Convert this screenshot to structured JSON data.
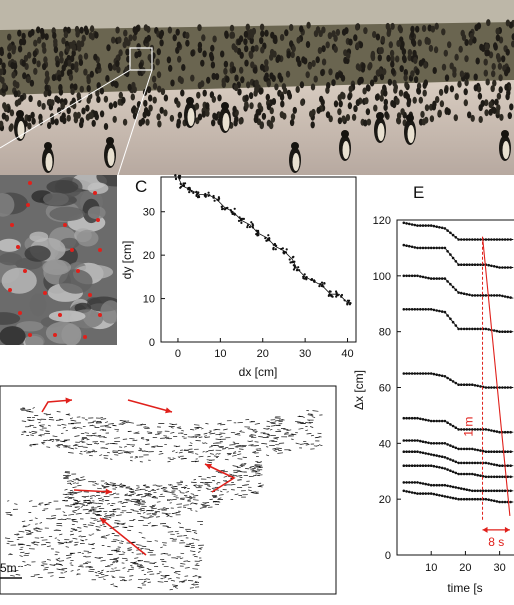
{
  "panel_c": {
    "letter": "C",
    "xlabel": "dx [cm]",
    "ylabel": "dy [cm]",
    "xticks": [
      "0",
      "10",
      "20",
      "30",
      "40"
    ],
    "yticks": [
      "0",
      "10",
      "20",
      "30"
    ]
  },
  "panel_d": {
    "scale_label": "5m"
  },
  "panel_e": {
    "letter": "E",
    "xlabel": "time [s",
    "ylabel": "Δx [cm]",
    "xticks": [
      "10",
      "20",
      "30"
    ],
    "yticks": [
      "0",
      "20",
      "40",
      "60",
      "80",
      "100",
      "120"
    ],
    "annotation_distance": "1 m",
    "annotation_time": "8 s"
  },
  "colors": {
    "annotation": "#e0201b",
    "ink": "#111111"
  },
  "chart_data": [
    {
      "type": "line",
      "panel": "C",
      "xlabel": "dx [cm]",
      "ylabel": "dy [cm]",
      "xlim": [
        -4,
        42
      ],
      "ylim": [
        0,
        38
      ],
      "series": [
        {
          "x": [
            0,
            1,
            3,
            5,
            7,
            9,
            11,
            13,
            15,
            17,
            19,
            21,
            23,
            25,
            27,
            28,
            30,
            32,
            34,
            36,
            38,
            40
          ],
          "y": [
            38,
            36,
            35,
            34,
            34,
            33,
            31,
            30,
            28,
            27,
            25,
            24,
            22,
            21,
            19,
            17,
            15,
            14,
            13,
            11,
            11,
            9
          ]
        }
      ]
    },
    {
      "type": "line",
      "panel": "E",
      "xlabel": "time [s",
      "ylabel": "Δx [cm]",
      "xlim": [
        0,
        38
      ],
      "ylim": [
        0,
        120
      ],
      "series": [
        {
          "values": [
            119,
            118,
            118,
            117,
            113,
            113,
            113,
            113,
            113
          ]
        },
        {
          "values": [
            111,
            110,
            110,
            110,
            104,
            104,
            104,
            103,
            103
          ]
        },
        {
          "values": [
            100,
            100,
            99,
            99,
            94,
            93,
            93,
            93,
            92
          ]
        },
        {
          "values": [
            88,
            88,
            88,
            87,
            81,
            81,
            81,
            80,
            80
          ]
        },
        {
          "values": [
            65,
            65,
            65,
            64,
            61,
            61,
            60,
            60,
            60
          ]
        },
        {
          "values": [
            49,
            49,
            48,
            48,
            45,
            45,
            45,
            44,
            44
          ]
        },
        {
          "values": [
            41,
            41,
            40,
            40,
            38,
            38,
            37,
            37,
            37
          ]
        },
        {
          "values": [
            37,
            37,
            36,
            35,
            33,
            33,
            33,
            32,
            32
          ]
        },
        {
          "values": [
            32,
            32,
            32,
            31,
            29,
            29,
            28,
            28,
            28
          ]
        },
        {
          "values": [
            26,
            26,
            25,
            25,
            24,
            23,
            23,
            23,
            23
          ]
        },
        {
          "values": [
            23,
            22,
            22,
            21,
            20,
            20,
            20,
            19,
            19
          ]
        }
      ],
      "time": [
        2,
        6,
        10,
        14,
        18,
        22,
        26,
        30,
        34
      ]
    }
  ]
}
